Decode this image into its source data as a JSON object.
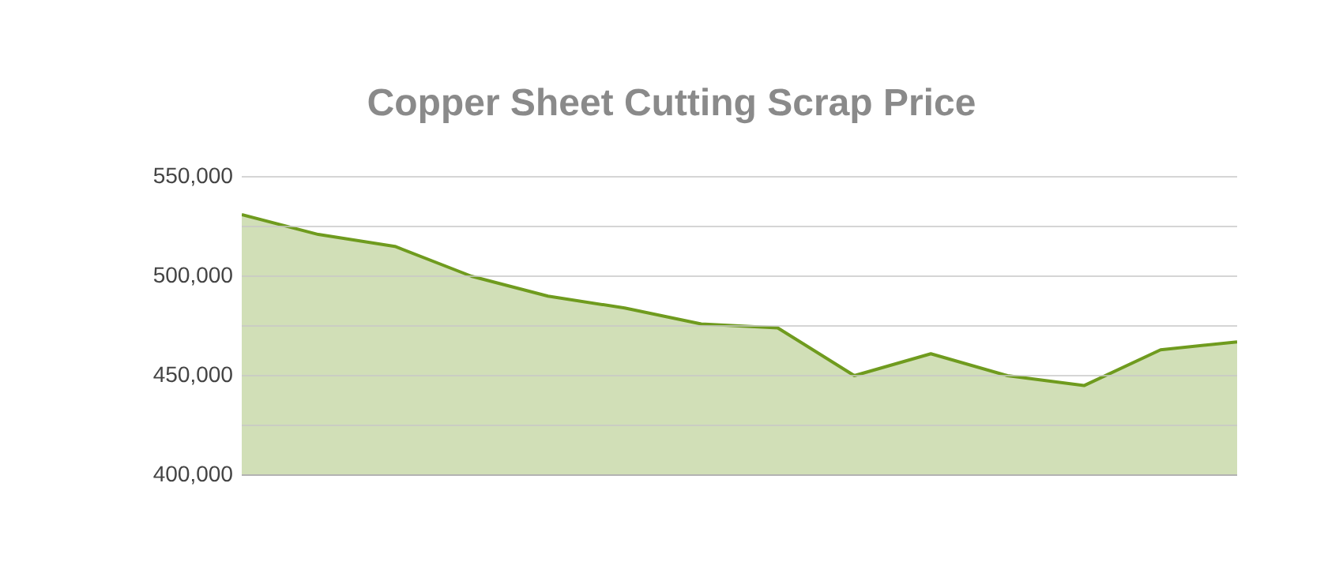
{
  "chart_data": {
    "type": "area",
    "title": "Copper Sheet Cutting Scrap Price",
    "categories": [
      null,
      null,
      null,
      null,
      null,
      null,
      null,
      null,
      null,
      null,
      null,
      null,
      null,
      null
    ],
    "series": [
      {
        "color": "#6f9b1e",
        "values": [
          531000,
          521000,
          515000,
          500000,
          490000,
          484000,
          476000,
          474000,
          450000,
          461000,
          450000,
          445000,
          463000,
          467000
        ]
      }
    ],
    "ylim": [
      400000,
      550000
    ],
    "yticks": [
      {
        "value": 400000,
        "label": "400,000"
      },
      {
        "value": 425000,
        "label": null
      },
      {
        "value": 450000,
        "label": "450,000"
      },
      {
        "value": 475000,
        "label": null
      },
      {
        "value": 500000,
        "label": "500,000"
      },
      {
        "value": 525000,
        "label": null
      },
      {
        "value": 550000,
        "label": "550,000"
      }
    ],
    "grid": "y"
  }
}
